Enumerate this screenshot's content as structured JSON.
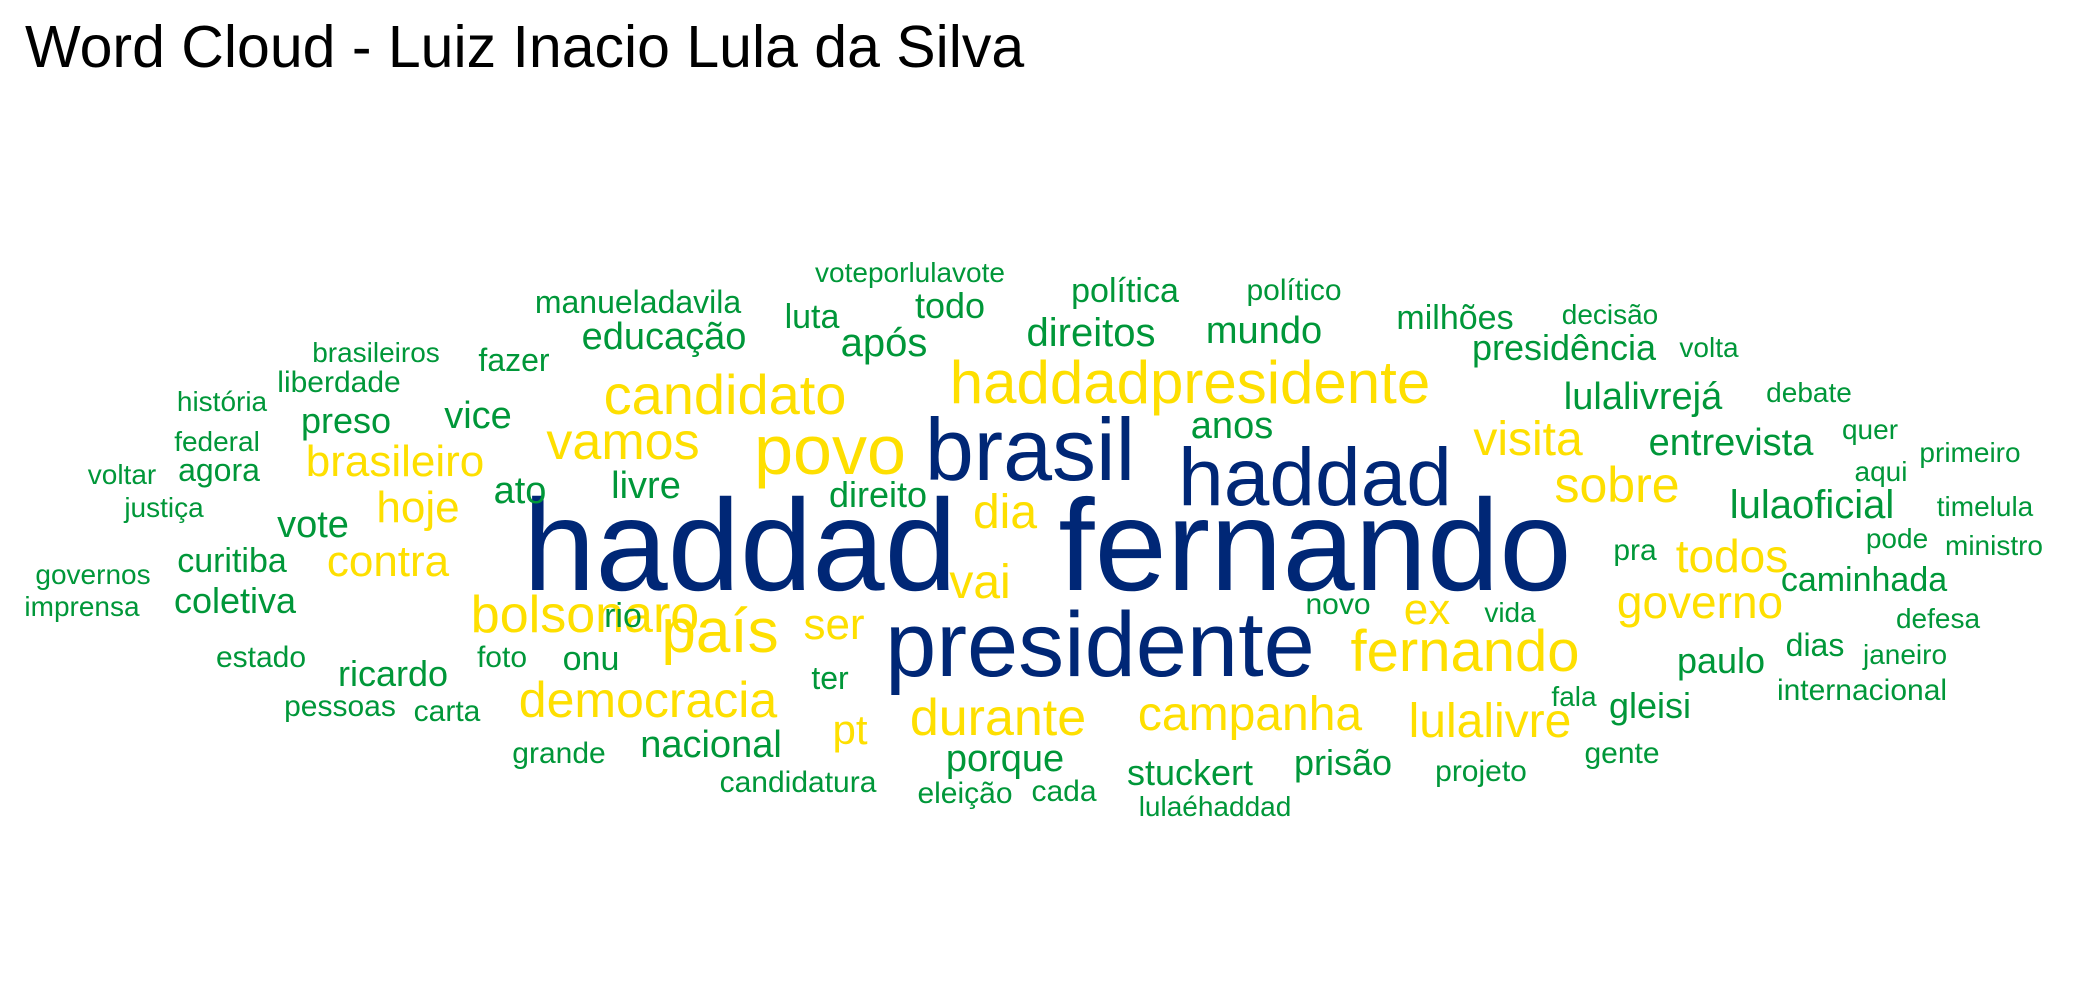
{
  "title": "Word Cloud - Luiz Inacio Lula da Silva",
  "colors": {
    "navy": "#002776",
    "yellow": "#FEDF00",
    "green": "#009739"
  },
  "words": [
    {
      "text": "haddad",
      "color": "navy"
    },
    {
      "text": "fernando",
      "color": "navy"
    },
    {
      "text": "presidente",
      "color": "navy"
    },
    {
      "text": "brasil",
      "color": "navy"
    },
    {
      "text": "haddad",
      "color": "navy"
    },
    {
      "text": "haddadpresidente",
      "color": "yellow"
    },
    {
      "text": "povo",
      "color": "yellow"
    },
    {
      "text": "candidato",
      "color": "yellow"
    },
    {
      "text": "vamos",
      "color": "yellow"
    },
    {
      "text": "país",
      "color": "yellow"
    },
    {
      "text": "fernando",
      "color": "yellow"
    },
    {
      "text": "bolsonaro",
      "color": "yellow"
    },
    {
      "text": "democracia",
      "color": "yellow"
    },
    {
      "text": "durante",
      "color": "yellow"
    },
    {
      "text": "campanha",
      "color": "yellow"
    },
    {
      "text": "governo",
      "color": "yellow"
    },
    {
      "text": "sobre",
      "color": "yellow"
    },
    {
      "text": "visita",
      "color": "yellow"
    },
    {
      "text": "lulalivre",
      "color": "yellow"
    },
    {
      "text": "todos",
      "color": "yellow"
    },
    {
      "text": "brasileiro",
      "color": "yellow"
    },
    {
      "text": "contra",
      "color": "yellow"
    },
    {
      "text": "hoje",
      "color": "yellow"
    },
    {
      "text": "dia",
      "color": "yellow"
    },
    {
      "text": "vai",
      "color": "yellow"
    },
    {
      "text": "ser",
      "color": "yellow"
    },
    {
      "text": "pt",
      "color": "yellow"
    },
    {
      "text": "ex",
      "color": "yellow"
    },
    {
      "text": "voteporlulavote",
      "color": "green"
    },
    {
      "text": "manueladavila",
      "color": "green"
    },
    {
      "text": "política",
      "color": "green"
    },
    {
      "text": "político",
      "color": "green"
    },
    {
      "text": "todo",
      "color": "green"
    },
    {
      "text": "luta",
      "color": "green"
    },
    {
      "text": "decisão",
      "color": "green"
    },
    {
      "text": "milhões",
      "color": "green"
    },
    {
      "text": "educação",
      "color": "green"
    },
    {
      "text": "direitos",
      "color": "green"
    },
    {
      "text": "mundo",
      "color": "green"
    },
    {
      "text": "brasileiros",
      "color": "green"
    },
    {
      "text": "fazer",
      "color": "green"
    },
    {
      "text": "após",
      "color": "green"
    },
    {
      "text": "presidência",
      "color": "green"
    },
    {
      "text": "volta",
      "color": "green"
    },
    {
      "text": "liberdade",
      "color": "green"
    },
    {
      "text": "história",
      "color": "green"
    },
    {
      "text": "lulalivrejá",
      "color": "green"
    },
    {
      "text": "debate",
      "color": "green"
    },
    {
      "text": "preso",
      "color": "green"
    },
    {
      "text": "vice",
      "color": "green"
    },
    {
      "text": "anos",
      "color": "green"
    },
    {
      "text": "quer",
      "color": "green"
    },
    {
      "text": "federal",
      "color": "green"
    },
    {
      "text": "entrevista",
      "color": "green"
    },
    {
      "text": "primeiro",
      "color": "green"
    },
    {
      "text": "voltar",
      "color": "green"
    },
    {
      "text": "agora",
      "color": "green"
    },
    {
      "text": "aqui",
      "color": "green"
    },
    {
      "text": "ato",
      "color": "green"
    },
    {
      "text": "livre",
      "color": "green"
    },
    {
      "text": "direito",
      "color": "green"
    },
    {
      "text": "lulaoficial",
      "color": "green"
    },
    {
      "text": "justiça",
      "color": "green"
    },
    {
      "text": "timelula",
      "color": "green"
    },
    {
      "text": "vote",
      "color": "green"
    },
    {
      "text": "pode",
      "color": "green"
    },
    {
      "text": "ministro",
      "color": "green"
    },
    {
      "text": "pra",
      "color": "green"
    },
    {
      "text": "curitiba",
      "color": "green"
    },
    {
      "text": "governos",
      "color": "green"
    },
    {
      "text": "caminhada",
      "color": "green"
    },
    {
      "text": "coletiva",
      "color": "green"
    },
    {
      "text": "imprensa",
      "color": "green"
    },
    {
      "text": "rio",
      "color": "green"
    },
    {
      "text": "novo",
      "color": "green"
    },
    {
      "text": "vida",
      "color": "green"
    },
    {
      "text": "defesa",
      "color": "green"
    },
    {
      "text": "estado",
      "color": "green"
    },
    {
      "text": "foto",
      "color": "green"
    },
    {
      "text": "onu",
      "color": "green"
    },
    {
      "text": "dias",
      "color": "green"
    },
    {
      "text": "janeiro",
      "color": "green"
    },
    {
      "text": "ricardo",
      "color": "green"
    },
    {
      "text": "paulo",
      "color": "green"
    },
    {
      "text": "ter",
      "color": "green"
    },
    {
      "text": "pessoas",
      "color": "green"
    },
    {
      "text": "carta",
      "color": "green"
    },
    {
      "text": "internacional",
      "color": "green"
    },
    {
      "text": "fala",
      "color": "green"
    },
    {
      "text": "gleisi",
      "color": "green"
    },
    {
      "text": "nacional",
      "color": "green"
    },
    {
      "text": "grande",
      "color": "green"
    },
    {
      "text": "porque",
      "color": "green"
    },
    {
      "text": "gente",
      "color": "green"
    },
    {
      "text": "prisão",
      "color": "green"
    },
    {
      "text": "stuckert",
      "color": "green"
    },
    {
      "text": "projeto",
      "color": "green"
    },
    {
      "text": "candidatura",
      "color": "green"
    },
    {
      "text": "eleição",
      "color": "green"
    },
    {
      "text": "cada",
      "color": "green"
    },
    {
      "text": "lulaéhaddad",
      "color": "green"
    }
  ]
}
